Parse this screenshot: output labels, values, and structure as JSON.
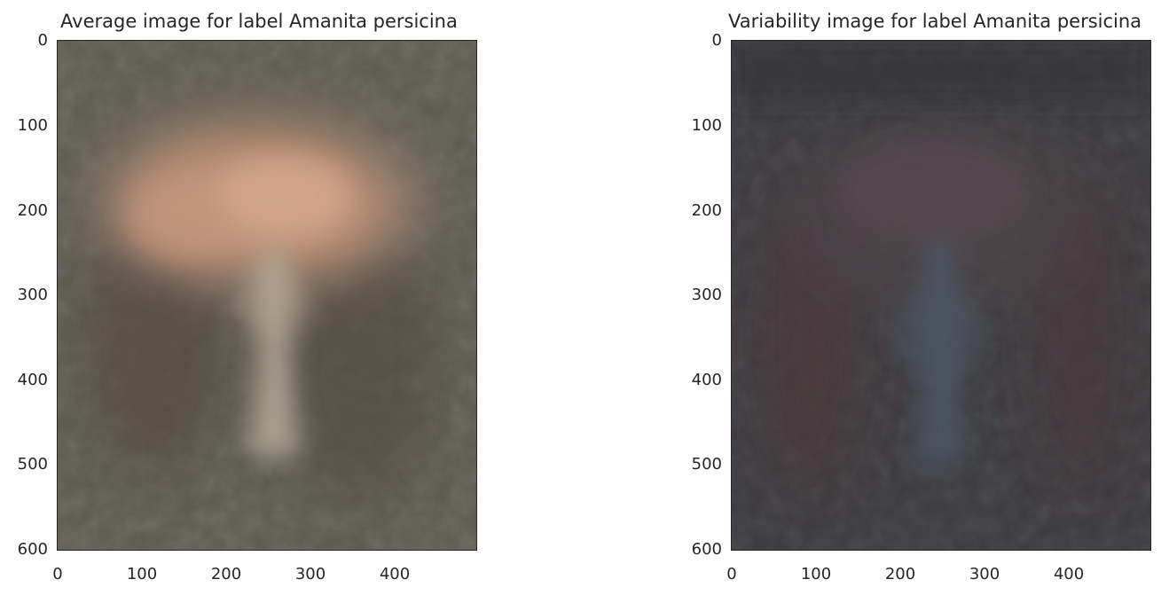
{
  "panels": [
    {
      "title": "Average image for label Amanita persicina",
      "image": "average-mushroom-image",
      "yticks": [
        "0",
        "100",
        "200",
        "300",
        "400",
        "500",
        "600"
      ],
      "xticks": [
        "0",
        "100",
        "200",
        "300",
        "400"
      ],
      "background_color": "#5c5a50",
      "cap_color": "#c99a80",
      "stem_color": "#b5aa98"
    },
    {
      "title": "Variability image for label Amanita persicina",
      "image": "variability-mushroom-image",
      "yticks": [
        "0",
        "100",
        "200",
        "300",
        "400",
        "500",
        "600"
      ],
      "xticks": [
        "0",
        "100",
        "200",
        "300",
        "400"
      ],
      "background_color": "#3b3a3d",
      "cap_color": "#5a4a52",
      "stem_color": "#4c5566"
    }
  ]
}
